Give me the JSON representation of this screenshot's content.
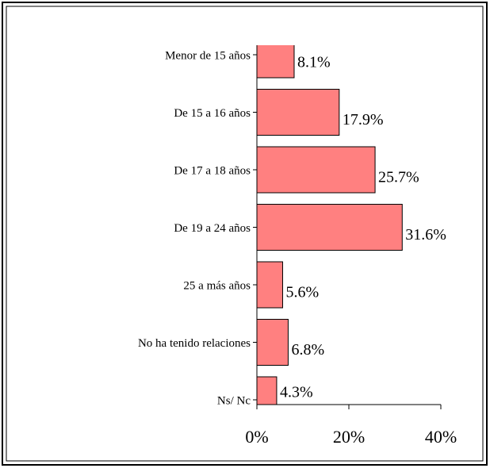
{
  "chart_data": {
    "type": "bar",
    "orientation": "horizontal",
    "categories": [
      "Menor de 15 años",
      "De 15 a 16 años",
      "De 17 a 18 años",
      "De 19 a 24 años",
      "25 a más años",
      "No ha tenido relaciones",
      "Ns/ Nc"
    ],
    "values": [
      8.1,
      17.9,
      25.7,
      31.6,
      5.6,
      6.8,
      4.3
    ],
    "value_labels": [
      "8.1%",
      "17.9%",
      "25.7%",
      "31.6%",
      "5.6%",
      "6.8%",
      "4.3%"
    ],
    "color": "#ff8080",
    "xlim": [
      0,
      40
    ],
    "xticks": [
      {
        "value": 0,
        "label": "0%"
      },
      {
        "value": 20,
        "label": "20%"
      },
      {
        "value": 40,
        "label": "40%"
      }
    ]
  }
}
